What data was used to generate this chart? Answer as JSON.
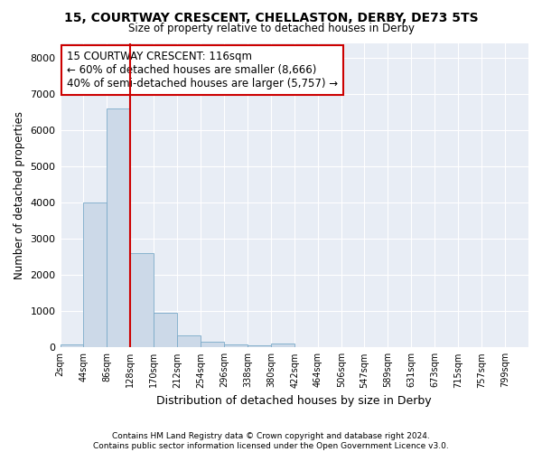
{
  "title1": "15, COURTWAY CRESCENT, CHELLASTON, DERBY, DE73 5TS",
  "title2": "Size of property relative to detached houses in Derby",
  "xlabel": "Distribution of detached houses by size in Derby",
  "ylabel": "Number of detached properties",
  "bar_color": "#ccd9e8",
  "bar_edgecolor": "#7aaac8",
  "background_color": "#e8edf5",
  "grid_color": "#ffffff",
  "vline_color": "#cc0000",
  "annotation_text": "15 COURTWAY CRESCENT: 116sqm\n← 60% of detached houses are smaller (8,666)\n40% of semi-detached houses are larger (5,757) →",
  "annotation_box_facecolor": "#ffffff",
  "annotation_box_edgecolor": "#cc0000",
  "bin_edges": [
    2,
    44,
    86,
    128,
    170,
    212,
    254,
    296,
    338,
    380,
    422,
    464,
    506,
    547,
    589,
    631,
    673,
    715,
    757,
    799,
    841
  ],
  "bin_values": [
    75,
    4000,
    6600,
    2600,
    960,
    330,
    150,
    80,
    50,
    100,
    0,
    0,
    0,
    0,
    0,
    0,
    0,
    0,
    0,
    0
  ],
  "ylim": [
    0,
    8400
  ],
  "yticks": [
    0,
    1000,
    2000,
    3000,
    4000,
    5000,
    6000,
    7000,
    8000
  ],
  "footnote": "Contains HM Land Registry data © Crown copyright and database right 2024.\nContains public sector information licensed under the Open Government Licence v3.0."
}
